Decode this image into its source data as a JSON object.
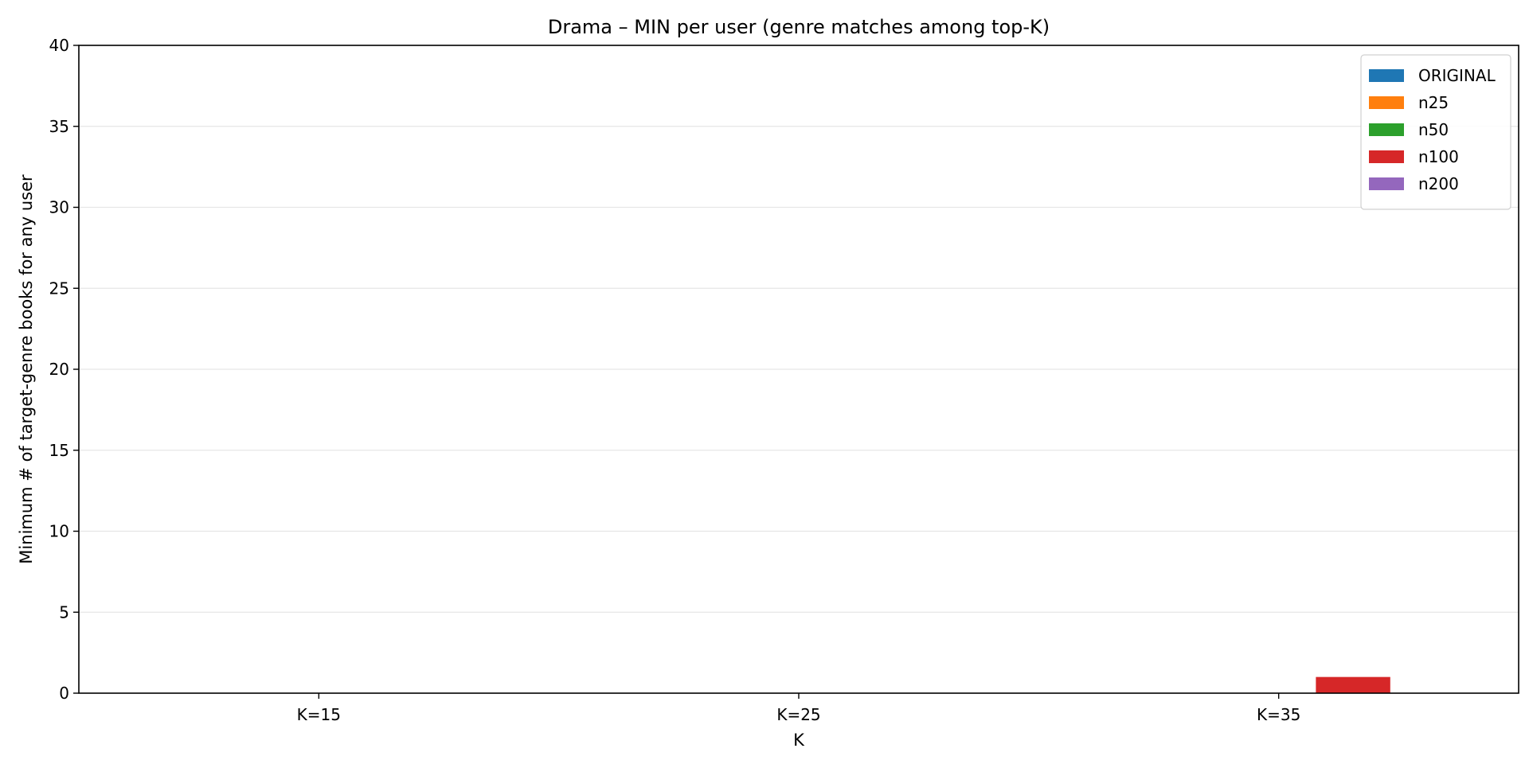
{
  "chart_data": {
    "type": "bar",
    "title": "Drama – MIN per user (genre matches among top-K)",
    "xlabel": "K",
    "ylabel": "Minimum # of target-genre books for any user",
    "categories": [
      "K=15",
      "K=25",
      "K=35"
    ],
    "ylim": [
      0,
      40
    ],
    "yticks": [
      0,
      5,
      10,
      15,
      20,
      25,
      30,
      35,
      40
    ],
    "grid": "y",
    "legend_position": "top-right",
    "series": [
      {
        "name": "ORIGINAL",
        "color": "#1f77b4",
        "values": [
          0,
          0,
          0
        ]
      },
      {
        "name": "n25",
        "color": "#ff7f0e",
        "values": [
          0,
          0,
          0
        ]
      },
      {
        "name": "n50",
        "color": "#2ca02c",
        "values": [
          0,
          0,
          0
        ]
      },
      {
        "name": "n100",
        "color": "#d62728",
        "values": [
          0,
          0,
          1
        ]
      },
      {
        "name": "n200",
        "color": "#9467bd",
        "values": [
          0,
          0,
          0
        ]
      }
    ]
  }
}
